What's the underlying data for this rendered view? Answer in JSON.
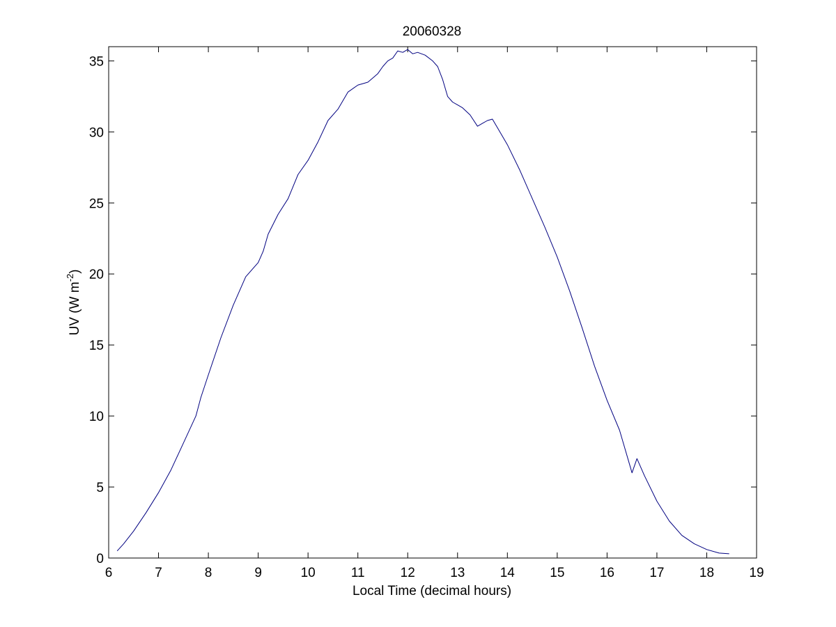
{
  "chart_data": {
    "type": "line",
    "title": "20060328",
    "xlabel": "Local Time (decimal hours)",
    "ylabel_main": "UV (W m",
    "ylabel_sup": "-2",
    "ylabel_close": ")",
    "xlim": [
      6,
      19
    ],
    "ylim": [
      0,
      36
    ],
    "xticks": [
      6,
      7,
      8,
      9,
      10,
      11,
      12,
      13,
      14,
      15,
      16,
      17,
      18,
      19
    ],
    "yticks": [
      0,
      5,
      10,
      15,
      20,
      25,
      30,
      35
    ],
    "grid": false,
    "line_color": "#000080",
    "series": [
      {
        "x": [
          6.17,
          6.3,
          6.5,
          6.75,
          7.0,
          7.25,
          7.5,
          7.75,
          7.85,
          8.0,
          8.25,
          8.5,
          8.75,
          9.0,
          9.1,
          9.2,
          9.4,
          9.6,
          9.8,
          10.0,
          10.2,
          10.4,
          10.6,
          10.8,
          11.0,
          11.2,
          11.3,
          11.4,
          11.5,
          11.6,
          11.7,
          11.8,
          11.9,
          12.0,
          12.1,
          12.2,
          12.35,
          12.5,
          12.6,
          12.7,
          12.8,
          12.9,
          13.0,
          13.1,
          13.25,
          13.4,
          13.5,
          13.6,
          13.7,
          13.8,
          14.0,
          14.25,
          14.5,
          14.75,
          15.0,
          15.25,
          15.5,
          15.75,
          16.0,
          16.25,
          16.5,
          16.6,
          16.75,
          17.0,
          17.25,
          17.5,
          17.75,
          18.0,
          18.25,
          18.45
        ],
        "y": [
          0.5,
          1.0,
          1.9,
          3.2,
          4.6,
          6.2,
          8.1,
          10.0,
          11.3,
          12.9,
          15.5,
          17.8,
          19.8,
          20.8,
          21.6,
          22.8,
          24.2,
          25.3,
          27.0,
          28.0,
          29.3,
          30.8,
          31.6,
          32.8,
          33.3,
          33.5,
          33.8,
          34.1,
          34.6,
          35.0,
          35.2,
          35.7,
          35.6,
          35.8,
          35.5,
          35.6,
          35.4,
          35.0,
          34.6,
          33.7,
          32.5,
          32.1,
          31.9,
          31.7,
          31.2,
          30.4,
          30.6,
          30.8,
          30.9,
          30.3,
          29.1,
          27.3,
          25.3,
          23.3,
          21.2,
          18.8,
          16.2,
          13.5,
          11.1,
          9.0,
          6.0,
          7.0,
          5.8,
          4.0,
          2.6,
          1.6,
          1.0,
          0.6,
          0.35,
          0.3
        ]
      }
    ]
  }
}
